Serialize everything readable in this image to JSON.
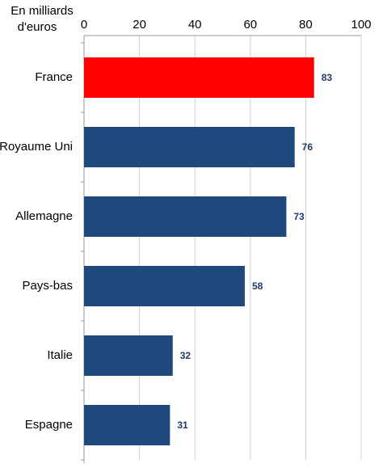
{
  "chart_data": {
    "type": "bar",
    "orientation": "horizontal",
    "x_label": [
      "En milliards",
      "d'euros"
    ],
    "categories": [
      "France",
      "Royaume Uni",
      "Allemagne",
      "Pays-bas",
      "Italie",
      "Espagne"
    ],
    "values": [
      83,
      76,
      73,
      58,
      32,
      31
    ],
    "colors": [
      "#ff0000",
      "#1f497d",
      "#1f497d",
      "#1f497d",
      "#1f497d",
      "#1f497d"
    ],
    "xlim": [
      0,
      100
    ],
    "xticks": [
      0,
      20,
      40,
      60,
      80,
      100
    ],
    "grid": true
  }
}
